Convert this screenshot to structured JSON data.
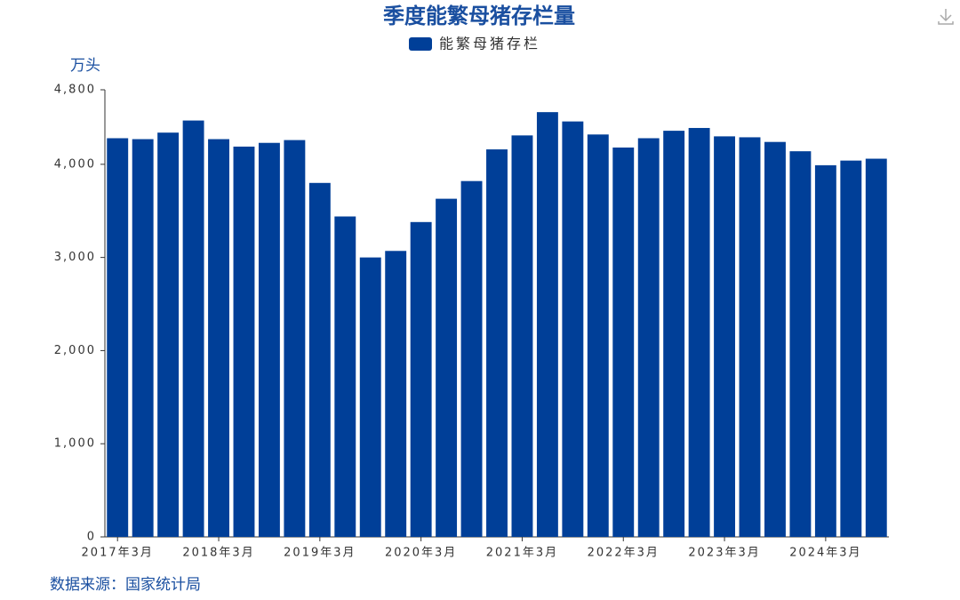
{
  "chart_data": {
    "type": "bar",
    "title": "季度能繁母猪存栏量",
    "y_axis_label": "万头",
    "source": "数据来源：国家统计局",
    "categories": [
      "2017年3月",
      null,
      null,
      null,
      "2018年3月",
      null,
      null,
      null,
      "2019年3月",
      null,
      null,
      null,
      "2020年3月",
      null,
      null,
      null,
      "2021年3月",
      null,
      null,
      null,
      "2022年3月",
      null,
      null,
      null,
      "2023年3月",
      null,
      null,
      null,
      "2024年3月",
      null,
      null
    ],
    "series": [
      {
        "name": "能繁母猪存栏",
        "color": "#003f98",
        "values": [
          4280,
          4270,
          4340,
          4470,
          4270,
          4190,
          4230,
          4260,
          3800,
          3440,
          3000,
          3070,
          3380,
          3630,
          3820,
          4160,
          4310,
          4560,
          4460,
          4320,
          4180,
          4280,
          4360,
          4390,
          4300,
          4290,
          4240,
          4140,
          3990,
          4040,
          4060
        ]
      }
    ],
    "ylim": [
      0,
      4800
    ],
    "yticks": [
      0,
      {
        "value": 1000,
        "label": "1,000"
      },
      {
        "value": 2000,
        "label": "2,000"
      },
      {
        "value": 3000,
        "label": "3,000"
      },
      {
        "value": 4000,
        "label": "4,000"
      },
      {
        "value": 4800,
        "label": "4,800"
      }
    ],
    "legend": "top"
  }
}
